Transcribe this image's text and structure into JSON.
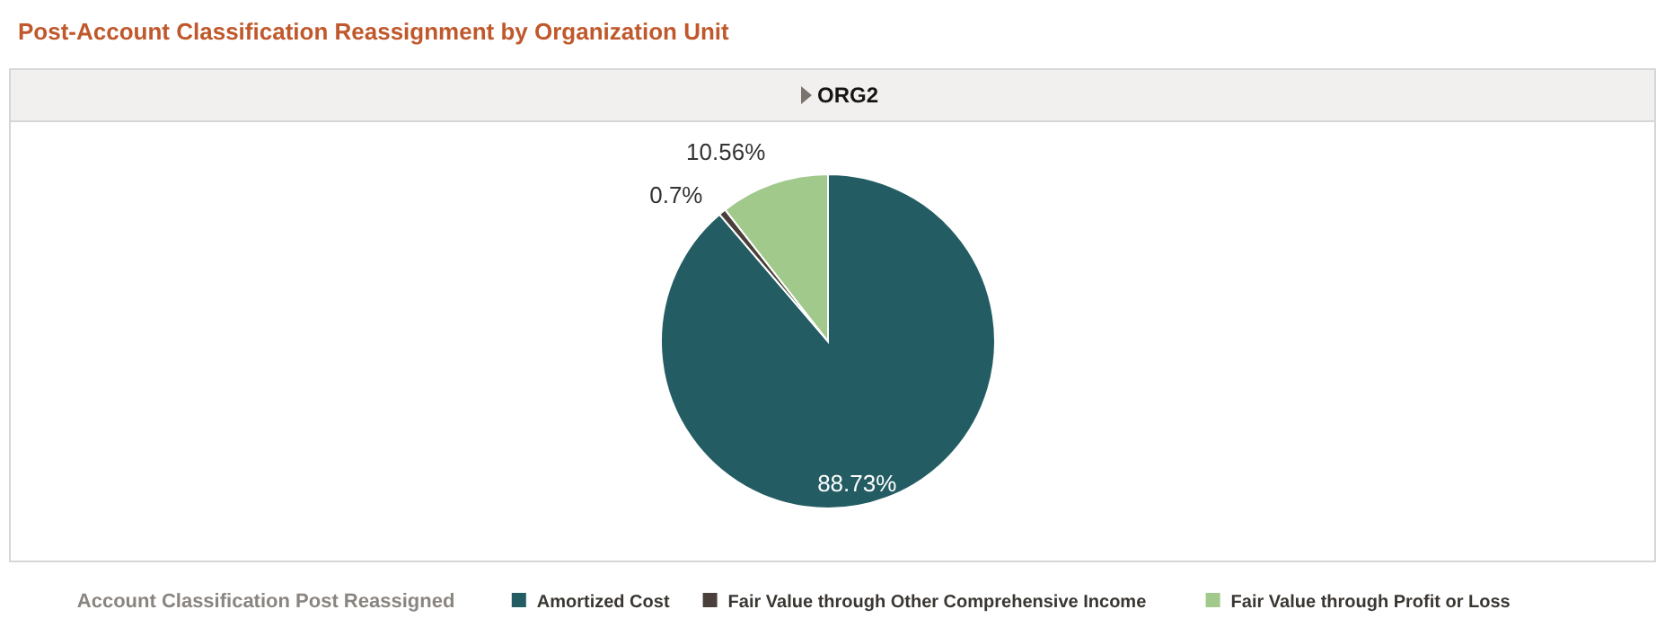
{
  "chart_data": {
    "type": "pie",
    "title": "Post-Account Classification Reassignment by Organization Unit",
    "subtitle": "ORG2",
    "legend_title": "Account Classification Post Reassigned",
    "categories": [
      "Amortized Cost",
      "Fair Value through Other Comprehensive Income",
      "Fair Value through Profit or Loss"
    ],
    "values": [
      88.73,
      0.7,
      10.56
    ],
    "colors": [
      "#235d63",
      "#4a3f3a",
      "#a1c98b"
    ],
    "value_labels": [
      "88.73%",
      "0.7%",
      "10.56%"
    ],
    "legend": "bottom"
  }
}
